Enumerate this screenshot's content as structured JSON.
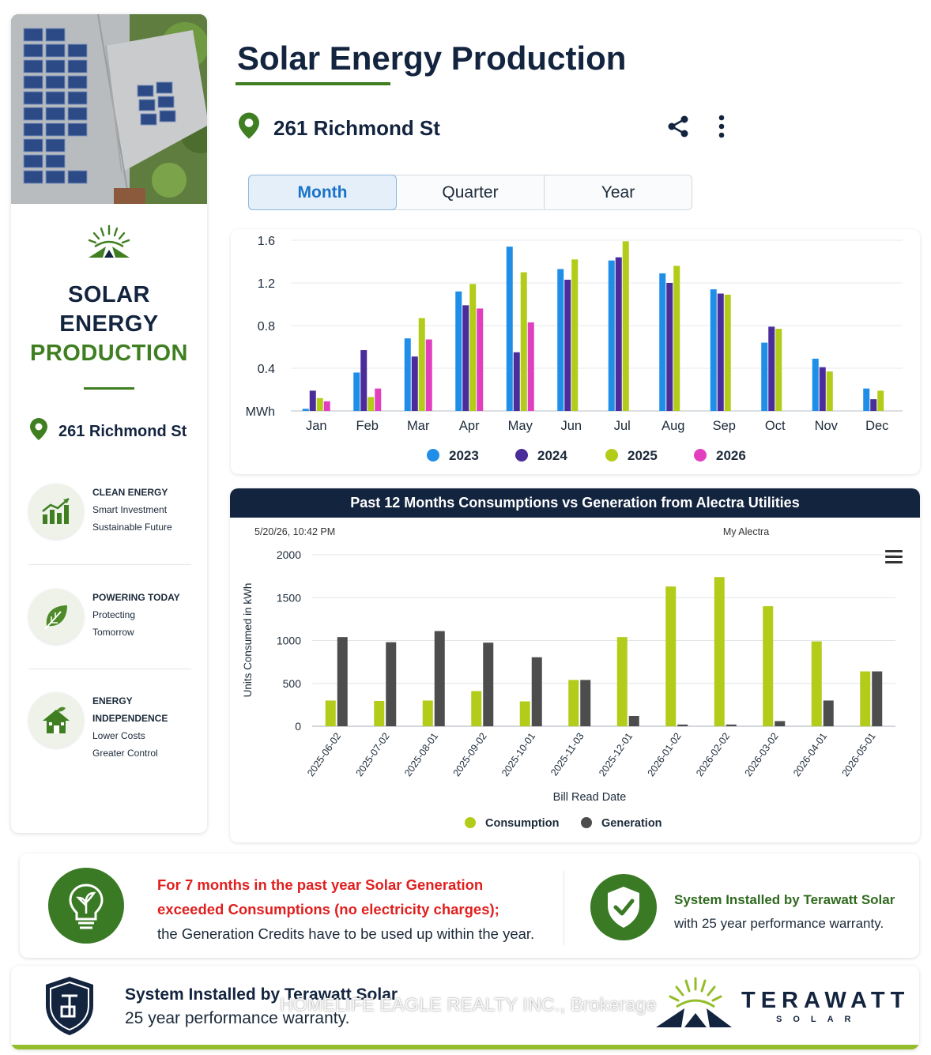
{
  "header": {
    "title": "Solar Energy Production",
    "address": "261 Richmond St"
  },
  "tabs": [
    {
      "label": "Month",
      "active": true
    },
    {
      "label": "Quarter",
      "active": false
    },
    {
      "label": "Year",
      "active": false
    }
  ],
  "sidebar": {
    "title_line1": "SOLAR",
    "title_line2": "ENERGY",
    "title_line3": "PRODUCTION",
    "address": "261 Richmond St",
    "features": [
      {
        "icon": "bar-chart-growth-icon",
        "lines": [
          "CLEAN ENERGY",
          "Smart Investment",
          "Sustainable Future"
        ]
      },
      {
        "icon": "leaf-icon",
        "lines": [
          "POWERING TODAY",
          "Protecting",
          "Tomorrow"
        ]
      },
      {
        "icon": "green-house-icon",
        "lines": [
          "ENERGY",
          "INDEPENDENCE",
          "Lower Costs",
          "Greater Control"
        ]
      }
    ]
  },
  "colors": {
    "navy": "#13243f",
    "green": "#3f7f22",
    "series_2023": "#1f8ee8",
    "series_2024": "#4a2c9a",
    "series_2025": "#b3cc1a",
    "series_2026": "#e23fbf",
    "consumption": "#b3cc1a",
    "generation": "#4d4d4d",
    "alert_red": "#e0201f"
  },
  "chart_data": [
    {
      "type": "bar",
      "categories": [
        "Jan",
        "Feb",
        "Mar",
        "Apr",
        "May",
        "Jun",
        "Jul",
        "Aug",
        "Sep",
        "Oct",
        "Nov",
        "Dec"
      ],
      "series": [
        {
          "name": "2023",
          "values": [
            0.02,
            0.36,
            0.68,
            1.12,
            1.54,
            1.33,
            1.41,
            1.29,
            1.14,
            0.64,
            0.49,
            0.21
          ]
        },
        {
          "name": "2024",
          "values": [
            0.19,
            0.57,
            0.51,
            0.99,
            0.55,
            1.23,
            1.44,
            1.2,
            1.1,
            0.79,
            0.41,
            0.11
          ]
        },
        {
          "name": "2025",
          "values": [
            0.12,
            0.13,
            0.87,
            1.19,
            1.3,
            1.42,
            1.59,
            1.36,
            1.09,
            0.77,
            0.37,
            0.19
          ]
        },
        {
          "name": "2026",
          "values": [
            0.09,
            0.21,
            0.67,
            0.96,
            0.83,
            null,
            null,
            null,
            null,
            null,
            null,
            null
          ]
        }
      ],
      "ylabel": "MWh",
      "yticks": [
        "0.4",
        "0.8",
        "1.2",
        "1.6"
      ],
      "ylim": [
        0,
        1.6
      ],
      "grid": true,
      "legend": "bottom"
    },
    {
      "type": "bar",
      "title": "Past 12 Months Consumptions vs Generation from Alectra Utilities",
      "timestamp": "5/20/26, 10:42 PM",
      "source": "My Alectra",
      "categories": [
        "2025-06-02",
        "2025-07-02",
        "2025-08-01",
        "2025-09-02",
        "2025-10-01",
        "2025-11-03",
        "2025-12-01",
        "2026-01-02",
        "2026-02-02",
        "2026-03-02",
        "2026-04-01",
        "2026-05-01"
      ],
      "series": [
        {
          "name": "Consumption",
          "values": [
            300,
            295,
            300,
            410,
            290,
            540,
            1040,
            1630,
            1740,
            1400,
            990,
            640
          ]
        },
        {
          "name": "Generation",
          "values": [
            1040,
            980,
            1110,
            975,
            805,
            540,
            120,
            20,
            20,
            60,
            300,
            640
          ]
        }
      ],
      "xlabel": "Bill Read Date",
      "ylabel": "Units Consumed in kWh",
      "yticks": [
        "0",
        "500",
        "1000",
        "1500",
        "2000"
      ],
      "ylim": [
        0,
        2000
      ],
      "grid": true,
      "legend": "bottom"
    }
  ],
  "info": {
    "alert_line1": "For 7 months in the past year Solar Generation",
    "alert_line2": "exceeded Consumptions (no electricity charges);",
    "note": "the Generation Credits have to be used up within the year.",
    "installer_line1": "System Installed by Terawatt Solar",
    "installer_line2": "with 25 year performance warranty."
  },
  "footer": {
    "line1": "System Installed by Terawatt Solar",
    "line2": "25 year performance warranty.",
    "watermark": "HOMELIFE EAGLE REALTY INC., Brokerage",
    "brand_name": "TERAWATT",
    "brand_sub": "SOLAR"
  }
}
